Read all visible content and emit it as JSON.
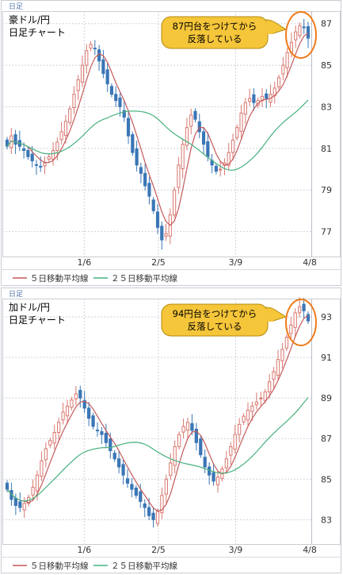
{
  "chart_data": [
    {
      "type": "candlestick",
      "tag": "日足",
      "title_line1": "豪ドル/円",
      "title_line2": "日足チャート",
      "callout_line1": "87円台をつけてから",
      "callout_line2": "反落している",
      "y_ticks": [
        77,
        79,
        81,
        83,
        85,
        87
      ],
      "ylim": [
        75.8,
        87.6
      ],
      "x_ticks": [
        "1/6",
        "2/5",
        "3/9",
        "4/8"
      ],
      "legend": [
        "５日移動平均線",
        "２５日移動平均線"
      ],
      "colors": {
        "up": "#d9776f",
        "down": "#3a76b6",
        "ma5": "#c4595a",
        "ma25": "#47b27e",
        "grid": "#cfd3dc",
        "callout": "#f5c53a",
        "circle": "#f07a18"
      },
      "close": [
        81.1,
        81.6,
        81.2,
        81.1,
        80.9,
        80.6,
        80.4,
        80.2,
        80.1,
        80.3,
        80.6,
        80.9,
        81.3,
        81.8,
        82.3,
        82.9,
        83.6,
        84.3,
        85.0,
        85.7,
        86.0,
        85.8,
        85.2,
        84.6,
        84.1,
        83.6,
        83.3,
        83.0,
        82.5,
        81.6,
        80.8,
        80.2,
        79.8,
        79.2,
        78.7,
        78.0,
        77.2,
        76.6,
        76.9,
        77.8,
        79.0,
        80.2,
        81.2,
        82.0,
        82.6,
        82.4,
        81.8,
        81.2,
        80.6,
        80.2,
        79.9,
        80.0,
        80.3,
        80.8,
        81.4,
        82.0,
        82.7,
        83.2,
        83.4,
        83.2,
        83.3,
        83.5,
        83.4,
        83.6,
        83.9,
        84.4,
        85.0,
        85.6,
        86.1,
        86.6,
        86.9,
        86.8,
        86.3
      ]
    },
    {
      "type": "candlestick",
      "tag": "日足",
      "title_line1": "加ドル/円",
      "title_line2": "日足チャート",
      "callout_line1": "94円台をつけてから",
      "callout_line2": "反落している",
      "y_ticks": [
        83,
        85,
        87,
        89,
        91,
        93
      ],
      "ylim": [
        81.8,
        93.9
      ],
      "x_ticks": [
        "1/6",
        "2/5",
        "3/9",
        "4/8"
      ],
      "legend": [
        "５日移動平均線",
        "２５日移動平均線"
      ],
      "colors": {
        "up": "#d9776f",
        "down": "#3a76b6",
        "ma5": "#c4595a",
        "ma25": "#47b27e",
        "grid": "#cfd3dc",
        "callout": "#f5c53a",
        "circle": "#f07a18"
      },
      "close": [
        84.5,
        84.0,
        83.7,
        83.6,
        83.8,
        84.1,
        84.6,
        85.2,
        85.9,
        86.5,
        86.9,
        87.3,
        87.8,
        88.3,
        88.6,
        88.9,
        89.2,
        89.0,
        88.5,
        88.0,
        87.6,
        87.4,
        87.2,
        86.8,
        86.4,
        86.0,
        85.6,
        85.2,
        84.8,
        84.5,
        84.2,
        83.9,
        83.6,
        83.2,
        83.0,
        83.4,
        84.2,
        85.0,
        85.8,
        86.6,
        87.2,
        87.6,
        87.8,
        87.4,
        86.8,
        86.2,
        85.6,
        85.2,
        84.9,
        85.1,
        85.5,
        86.0,
        86.6,
        87.2,
        87.7,
        88.1,
        88.4,
        88.6,
        88.8,
        89.0,
        89.3,
        89.8,
        90.3,
        90.9,
        91.4,
        92.0,
        92.6,
        93.2,
        93.5,
        93.3,
        92.8
      ]
    }
  ]
}
